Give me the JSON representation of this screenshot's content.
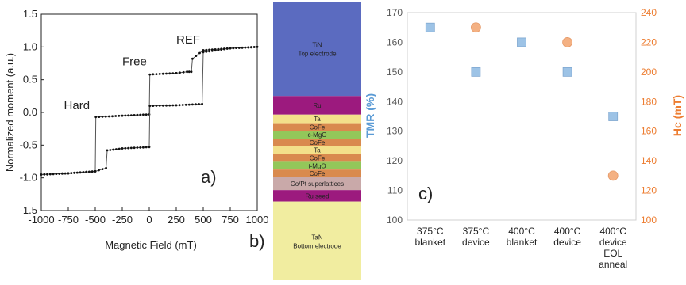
{
  "chart_data": [
    {
      "panel": "a)",
      "type": "line",
      "xlabel": "Magnetic Field (mT)",
      "ylabel": "Normalized moment (a.u.)",
      "xlim": [
        -1000,
        1000
      ],
      "ylim": [
        -1.5,
        1.5
      ],
      "xticks": [
        "-1000",
        "-750",
        "-500",
        "-250",
        "0",
        "250",
        "500",
        "750",
        "1000"
      ],
      "yticks": [
        "1.5",
        "1.0",
        "0.5",
        "0.0",
        "-0.5",
        "-1.0",
        "-1.5"
      ],
      "grid": false,
      "annotations": [
        {
          "text": "Hard",
          "x": -790,
          "y": 0.05
        },
        {
          "text": "Free",
          "x": -250,
          "y": 0.72
        },
        {
          "text": "REF",
          "x": 250,
          "y": 1.05
        }
      ],
      "series": [
        {
          "points": [
            [
              -1000,
              -0.95
            ],
            [
              -750,
              -0.93
            ],
            [
              -500,
              -0.9
            ],
            [
              -495,
              -0.07
            ],
            [
              -250,
              -0.05
            ],
            [
              0,
              -0.03
            ],
            [
              5,
              0.58
            ],
            [
              250,
              0.6
            ],
            [
              350,
              0.62
            ],
            [
              390,
              0.62
            ],
            [
              400,
              0.82
            ],
            [
              500,
              0.95
            ],
            [
              750,
              0.98
            ],
            [
              1000,
              1.0
            ]
          ]
        },
        {
          "points": [
            [
              -1000,
              -0.95
            ],
            [
              -750,
              -0.93
            ],
            [
              -500,
              -0.9
            ],
            [
              -400,
              -0.85
            ],
            [
              -390,
              -0.58
            ],
            [
              -250,
              -0.55
            ],
            [
              0,
              -0.53
            ],
            [
              5,
              0.1
            ],
            [
              250,
              0.11
            ],
            [
              490,
              0.13
            ],
            [
              500,
              0.92
            ],
            [
              750,
              0.98
            ],
            [
              1000,
              1.0
            ]
          ]
        }
      ]
    },
    {
      "panel": "b)",
      "type": "stack",
      "layers": [
        {
          "name": "TiN",
          "sub": "Top electrode",
          "color": "#5B6BC0",
          "h": 0.33
        },
        {
          "name": "Ru",
          "sub": "",
          "color": "#9C1A7E",
          "h": 0.065
        },
        {
          "name": "Ta",
          "sub": "",
          "color": "#F3E08A",
          "h": 0.03
        },
        {
          "name": "CoFe",
          "sub": "",
          "color": "#D98A4E",
          "h": 0.027
        },
        {
          "name": "c-MgO",
          "sub": "",
          "color": "#93C75A",
          "h": 0.027
        },
        {
          "name": "CoFe",
          "sub": "",
          "color": "#D98A4E",
          "h": 0.027
        },
        {
          "name": "Ta",
          "sub": "",
          "color": "#F3E08A",
          "h": 0.027
        },
        {
          "name": "CoFe",
          "sub": "",
          "color": "#D98A4E",
          "h": 0.027
        },
        {
          "name": "t-MgO",
          "sub": "",
          "color": "#93C75A",
          "h": 0.027
        },
        {
          "name": "CoFe",
          "sub": "",
          "color": "#D98A4E",
          "h": 0.027
        },
        {
          "name": "Co/Pt superlattices",
          "sub": "",
          "color": "#C9A9A9",
          "h": 0.045
        },
        {
          "name": "Ru seed",
          "sub": "",
          "color": "#9C1A7E",
          "h": 0.04
        },
        {
          "name": "TaN",
          "sub": "Bottom electrode",
          "color": "#F1EDA0",
          "h": 0.275
        }
      ]
    },
    {
      "panel": "c)",
      "type": "scatter",
      "categories": [
        [
          "375°C",
          "blanket"
        ],
        [
          "375°C",
          "device"
        ],
        [
          "400°C",
          "blanket"
        ],
        [
          "400°C",
          "device"
        ],
        [
          "400°C",
          "device",
          "EOL",
          "anneal"
        ]
      ],
      "ylabel": "TMR (%)",
      "y2label": "Hc (mT)",
      "ylim": [
        100,
        170
      ],
      "y2lim": [
        100,
        240
      ],
      "yticks": [
        "100",
        "110",
        "120",
        "130",
        "140",
        "150",
        "160",
        "170"
      ],
      "y2ticks": [
        "100",
        "120",
        "140",
        "160",
        "180",
        "200",
        "220",
        "240"
      ],
      "ylabel_color": "#5B9BD5",
      "y2label_color": "#ED7D31",
      "grid": false,
      "series": [
        {
          "axis": "left",
          "marker": "square",
          "color": "#9DC3E6",
          "values": [
            165,
            150,
            160,
            150,
            135
          ]
        },
        {
          "axis": "right",
          "marker": "circle",
          "color": "#F4B183",
          "values": [
            null,
            230,
            null,
            220,
            130
          ]
        }
      ]
    }
  ]
}
